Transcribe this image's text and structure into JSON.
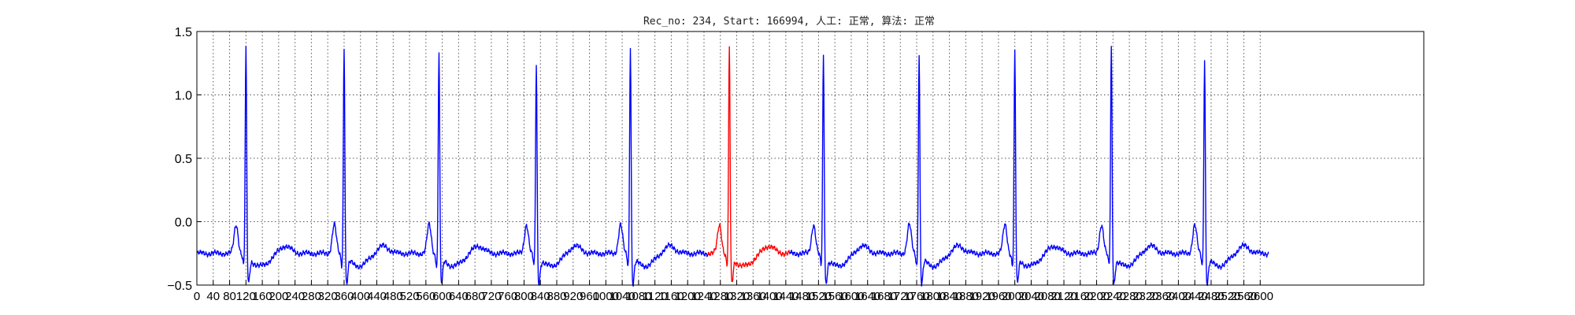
{
  "chart_data": {
    "type": "line",
    "title": "Rec_no: 234, Start: 166994, 人工: 正常, 算法: 正常",
    "xlabel": "",
    "ylabel": "",
    "xlim": [
      0,
      3000
    ],
    "ylim": [
      -0.5,
      1.5
    ],
    "grid": true,
    "yticks": [
      "1.5",
      "1.0",
      "0.5",
      "0.0",
      "−0.5"
    ],
    "xticks": [
      "0",
      "40",
      "80",
      "120",
      "160",
      "200",
      "240",
      "280",
      "320",
      "360",
      "400",
      "440",
      "480",
      "520",
      "560",
      "600",
      "640",
      "680",
      "720",
      "760",
      "800",
      "840",
      "880",
      "920",
      "960",
      "1000",
      "1040",
      "1080",
      "1120",
      "1160",
      "1200",
      "1240",
      "1280",
      "1320",
      "1360",
      "1400",
      "1440",
      "1480",
      "1520",
      "1560",
      "1600",
      "1640",
      "1680",
      "1720",
      "1760",
      "1800",
      "1840",
      "1880",
      "1920",
      "1960",
      "2000",
      "2040",
      "2080",
      "2120",
      "2160",
      "2200",
      "2240",
      "2280",
      "2320",
      "2360",
      "2400",
      "2440",
      "2480",
      "2520",
      "2560",
      "2600"
    ],
    "series": [
      {
        "color": "#0000ff",
        "range": [
          0,
          1250
        ],
        "role": "context"
      },
      {
        "color": "#ff0000",
        "range": [
          1250,
          1450
        ],
        "role": "highlighted-beat"
      },
      {
        "color": "#0000ff",
        "range": [
          1450,
          2620
        ],
        "role": "context"
      }
    ],
    "beats": [
      {
        "r_peak_x": 120,
        "r_amp": 1.42
      },
      {
        "r_peak_x": 360,
        "r_amp": 1.44
      },
      {
        "r_peak_x": 592,
        "r_amp": 1.41
      },
      {
        "r_peak_x": 830,
        "r_amp": 1.3
      },
      {
        "r_peak_x": 1060,
        "r_amp": 1.44
      },
      {
        "r_peak_x": 1302,
        "r_amp": 1.44
      },
      {
        "r_peak_x": 1532,
        "r_amp": 1.37
      },
      {
        "r_peak_x": 1766,
        "r_amp": 1.39
      },
      {
        "r_peak_x": 2000,
        "r_amp": 1.4
      },
      {
        "r_peak_x": 2236,
        "r_amp": 1.44
      },
      {
        "r_peak_x": 2464,
        "r_amp": 1.34
      }
    ],
    "baseline": -0.25
  }
}
